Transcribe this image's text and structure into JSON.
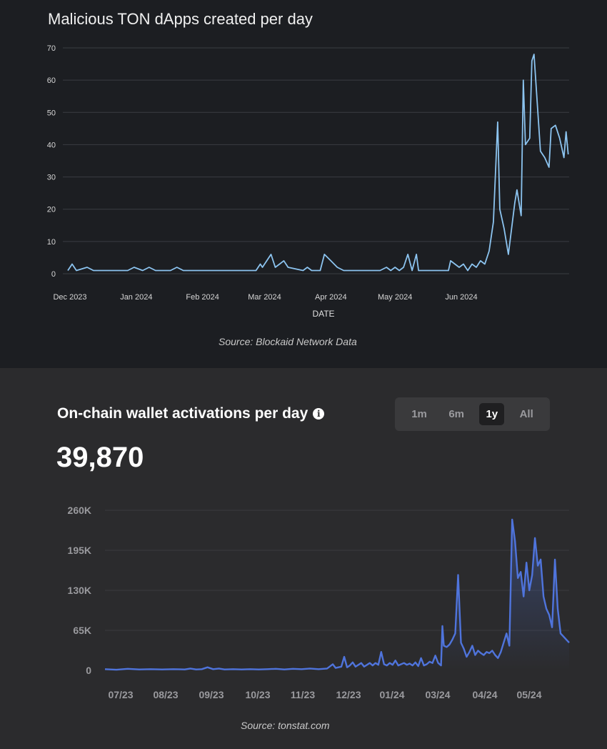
{
  "chart_data": [
    {
      "type": "line",
      "title": "Malicious TON dApps created per day",
      "xlabel": "DATE",
      "ylabel": "",
      "ylim": [
        0,
        70
      ],
      "yticks": [
        "0",
        "10",
        "20",
        "30",
        "40",
        "50",
        "60",
        "70"
      ],
      "xticks": [
        "Dec 2023",
        "Jan 2024",
        "Feb 2024",
        "Mar 2024",
        "Apr 2024",
        "May 2024",
        "Jun 2024"
      ],
      "grid": true,
      "color": "#8cc4f0",
      "source": "Source: Blockaid Network Data",
      "points": [
        [
          "2023-12-01",
          1
        ],
        [
          "2023-12-03",
          3
        ],
        [
          "2023-12-05",
          1
        ],
        [
          "2023-12-10",
          2
        ],
        [
          "2023-12-13",
          1
        ],
        [
          "2023-12-29",
          1
        ],
        [
          "2024-01-01",
          2
        ],
        [
          "2024-01-05",
          1
        ],
        [
          "2024-01-08",
          2
        ],
        [
          "2024-01-11",
          1
        ],
        [
          "2024-01-18",
          1
        ],
        [
          "2024-01-21",
          2
        ],
        [
          "2024-01-24",
          1
        ],
        [
          "2024-02-27",
          1
        ],
        [
          "2024-02-29",
          3
        ],
        [
          "2024-03-01",
          2
        ],
        [
          "2024-03-05",
          6
        ],
        [
          "2024-03-07",
          2
        ],
        [
          "2024-03-09",
          3
        ],
        [
          "2024-03-11",
          4
        ],
        [
          "2024-03-13",
          2
        ],
        [
          "2024-03-20",
          1
        ],
        [
          "2024-03-22",
          2
        ],
        [
          "2024-03-24",
          1
        ],
        [
          "2024-03-28",
          1
        ],
        [
          "2024-03-30",
          6
        ],
        [
          "2024-04-02",
          4
        ],
        [
          "2024-04-05",
          2
        ],
        [
          "2024-04-08",
          1
        ],
        [
          "2024-04-25",
          1
        ],
        [
          "2024-04-28",
          2
        ],
        [
          "2024-04-30",
          1
        ],
        [
          "2024-05-02",
          2
        ],
        [
          "2024-05-04",
          1
        ],
        [
          "2024-05-06",
          2
        ],
        [
          "2024-05-08",
          6
        ],
        [
          "2024-05-10",
          1
        ],
        [
          "2024-05-12",
          6
        ],
        [
          "2024-05-13",
          1
        ],
        [
          "2024-05-27",
          1
        ],
        [
          "2024-05-28",
          4
        ],
        [
          "2024-06-01",
          2
        ],
        [
          "2024-06-03",
          3
        ],
        [
          "2024-06-05",
          1
        ],
        [
          "2024-06-07",
          3
        ],
        [
          "2024-06-09",
          2
        ],
        [
          "2024-06-11",
          4
        ],
        [
          "2024-06-13",
          3
        ],
        [
          "2024-06-15",
          7
        ],
        [
          "2024-06-17",
          16
        ],
        [
          "2024-06-19",
          47
        ],
        [
          "2024-06-20",
          20
        ],
        [
          "2024-06-22",
          14
        ],
        [
          "2024-06-24",
          6
        ],
        [
          "2024-06-27",
          22
        ],
        [
          "2024-06-28",
          26
        ],
        [
          "2024-06-30",
          18
        ],
        [
          "2024-07-01",
          60
        ],
        [
          "2024-07-02",
          40
        ],
        [
          "2024-07-04",
          42
        ],
        [
          "2024-07-05",
          66
        ],
        [
          "2024-07-06",
          68
        ],
        [
          "2024-07-07",
          58
        ],
        [
          "2024-07-09",
          38
        ],
        [
          "2024-07-11",
          36
        ],
        [
          "2024-07-13",
          33
        ],
        [
          "2024-07-14",
          45
        ],
        [
          "2024-07-16",
          46
        ],
        [
          "2024-07-18",
          42
        ],
        [
          "2024-07-20",
          36
        ],
        [
          "2024-07-21",
          44
        ],
        [
          "2024-07-22",
          37
        ]
      ]
    },
    {
      "type": "area",
      "title": "On-chain wallet activations per day",
      "big_value": "39,870",
      "ylim": [
        0,
        260000
      ],
      "yticks": [
        "0",
        "65K",
        "130K",
        "195K",
        "260K"
      ],
      "xticks": [
        "07/23",
        "08/23",
        "09/23",
        "10/23",
        "11/23",
        "12/23",
        "01/24",
        "03/24",
        "04/24",
        "05/24"
      ],
      "range_buttons": [
        "1m",
        "6m",
        "1y",
        "All"
      ],
      "active_range": "1y",
      "grid": true,
      "color": "#4f74dc",
      "source": "Source: tonstat.com",
      "points": [
        [
          0,
          2000
        ],
        [
          4,
          1000
        ],
        [
          8,
          2500
        ],
        [
          12,
          1500
        ],
        [
          16,
          2000
        ],
        [
          20,
          1500
        ],
        [
          24,
          2000
        ],
        [
          28,
          1500
        ],
        [
          30,
          3000
        ],
        [
          32,
          1500
        ],
        [
          34,
          2000
        ],
        [
          36,
          5000
        ],
        [
          38,
          2000
        ],
        [
          40,
          3000
        ],
        [
          42,
          1500
        ],
        [
          45,
          2000
        ],
        [
          48,
          1500
        ],
        [
          51,
          2000
        ],
        [
          54,
          1500
        ],
        [
          57,
          2000
        ],
        [
          60,
          2500
        ],
        [
          63,
          1500
        ],
        [
          66,
          2500
        ],
        [
          69,
          2000
        ],
        [
          72,
          3000
        ],
        [
          75,
          2000
        ],
        [
          78,
          3000
        ],
        [
          80,
          10000
        ],
        [
          81,
          4000
        ],
        [
          83,
          6000
        ],
        [
          84,
          22000
        ],
        [
          85,
          5000
        ],
        [
          86,
          8000
        ],
        [
          87,
          13000
        ],
        [
          88,
          6000
        ],
        [
          89,
          9000
        ],
        [
          90,
          12000
        ],
        [
          91,
          6000
        ],
        [
          92,
          9000
        ],
        [
          93,
          12000
        ],
        [
          94,
          8000
        ],
        [
          95,
          12000
        ],
        [
          96,
          9000
        ],
        [
          97,
          30000
        ],
        [
          98,
          10000
        ],
        [
          99,
          8000
        ],
        [
          100,
          12000
        ],
        [
          101,
          9000
        ],
        [
          102,
          16000
        ],
        [
          103,
          8000
        ],
        [
          104,
          10000
        ],
        [
          105,
          12000
        ],
        [
          106,
          9000
        ],
        [
          107,
          11000
        ],
        [
          108,
          8000
        ],
        [
          109,
          13000
        ],
        [
          110,
          7000
        ],
        [
          111,
          20000
        ],
        [
          112,
          8000
        ],
        [
          113,
          10000
        ],
        [
          114,
          14000
        ],
        [
          115,
          12000
        ],
        [
          116,
          24000
        ],
        [
          117,
          12000
        ],
        [
          118,
          8000
        ],
        [
          118.5,
          72000
        ],
        [
          119,
          40000
        ],
        [
          120,
          38000
        ],
        [
          121,
          42000
        ],
        [
          122,
          50000
        ],
        [
          123,
          60000
        ],
        [
          124,
          155000
        ],
        [
          125,
          45000
        ],
        [
          126,
          35000
        ],
        [
          127,
          22000
        ],
        [
          128,
          30000
        ],
        [
          129,
          40000
        ],
        [
          130,
          25000
        ],
        [
          131,
          32000
        ],
        [
          132,
          28000
        ],
        [
          133,
          25000
        ],
        [
          134,
          30000
        ],
        [
          135,
          28000
        ],
        [
          136,
          32000
        ],
        [
          137,
          25000
        ],
        [
          138,
          20000
        ],
        [
          139,
          30000
        ],
        [
          140,
          45000
        ],
        [
          141,
          60000
        ],
        [
          142,
          40000
        ],
        [
          143,
          245000
        ],
        [
          144,
          210000
        ],
        [
          145,
          150000
        ],
        [
          146,
          160000
        ],
        [
          147,
          120000
        ],
        [
          148,
          175000
        ],
        [
          149,
          130000
        ],
        [
          150,
          155000
        ],
        [
          151,
          215000
        ],
        [
          152,
          170000
        ],
        [
          153,
          180000
        ],
        [
          154,
          120000
        ],
        [
          155,
          100000
        ],
        [
          156,
          90000
        ],
        [
          157,
          70000
        ],
        [
          158,
          180000
        ],
        [
          159,
          100000
        ],
        [
          160,
          60000
        ],
        [
          161,
          55000
        ],
        [
          162,
          50000
        ],
        [
          163,
          45000
        ]
      ]
    }
  ]
}
